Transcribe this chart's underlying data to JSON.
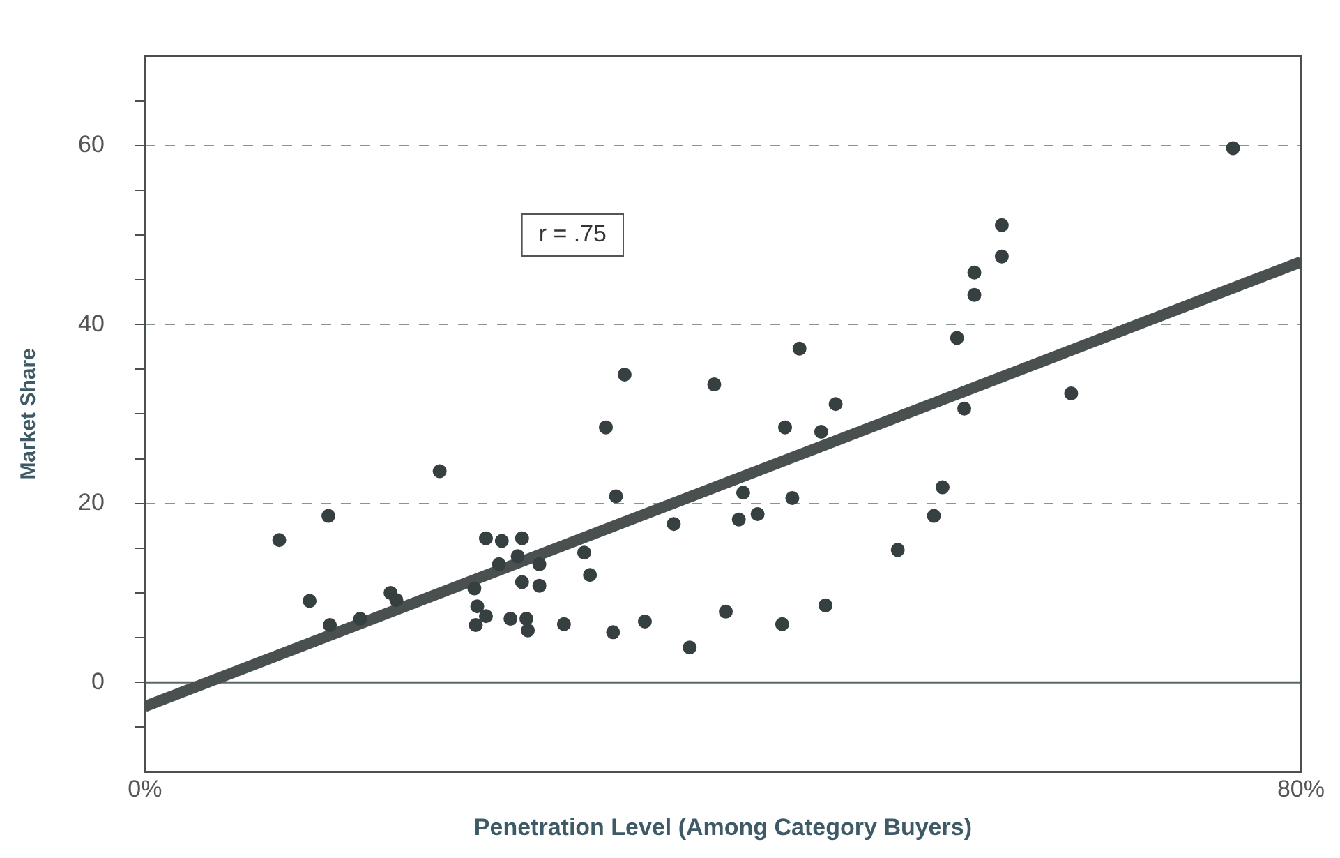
{
  "chart_data": {
    "type": "scatter",
    "xlabel": "Penetration Level (Among Category Buyers)",
    "ylabel": "Market Share",
    "xlim": [
      0,
      80
    ],
    "xticks": [
      {
        "value": 0,
        "label": "0%"
      },
      {
        "value": 80,
        "label": "80%"
      }
    ],
    "ylim": [
      -10,
      70
    ],
    "yticks": [
      {
        "value": -5,
        "label": null
      },
      {
        "value": 0,
        "label": "0"
      },
      {
        "value": 5,
        "label": null
      },
      {
        "value": 10,
        "label": null
      },
      {
        "value": 15,
        "label": null
      },
      {
        "value": 20,
        "label": "20"
      },
      {
        "value": 25,
        "label": null
      },
      {
        "value": 30,
        "label": null
      },
      {
        "value": 35,
        "label": null
      },
      {
        "value": 40,
        "label": "40"
      },
      {
        "value": 45,
        "label": null
      },
      {
        "value": 50,
        "label": null
      },
      {
        "value": 55,
        "label": null
      },
      {
        "value": 60,
        "label": "60"
      },
      {
        "value": 65,
        "label": null
      }
    ],
    "grid": "y",
    "annotations": [
      "r = .75"
    ],
    "ref_lines": [
      {
        "axis": "y",
        "value": 0,
        "color": "#5a6a6a"
      }
    ],
    "series": [
      {
        "color": "#364040",
        "marker": "circle",
        "x": [
          9.3,
          11.4,
          12.7,
          12.8,
          14.9,
          17.0,
          17.4,
          20.4,
          22.8,
          23.0,
          22.9,
          23.6,
          23.6,
          24.7,
          26.1,
          25.8,
          24.5,
          27.3,
          26.1,
          27.3,
          25.3,
          26.4,
          26.5,
          29.0,
          30.4,
          30.8,
          32.4,
          31.9,
          32.6,
          33.2,
          34.6,
          36.6,
          37.7,
          39.4,
          40.2,
          41.1,
          41.4,
          42.4,
          44.1,
          44.3,
          44.8,
          45.3,
          46.8,
          47.1,
          47.8,
          52.1,
          54.6,
          55.2,
          56.2,
          56.7,
          57.4,
          57.4,
          59.3,
          59.3,
          64.1,
          75.3
        ],
        "values": [
          15.9,
          9.1,
          18.6,
          6.4,
          7.1,
          10.0,
          9.2,
          23.6,
          10.5,
          8.5,
          6.4,
          7.4,
          16.1,
          15.8,
          16.1,
          14.1,
          13.2,
          13.2,
          11.2,
          10.8,
          7.1,
          7.1,
          5.8,
          6.5,
          14.5,
          12.0,
          5.6,
          28.5,
          20.8,
          34.4,
          6.8,
          17.7,
          3.9,
          33.3,
          7.9,
          18.2,
          21.2,
          18.8,
          6.5,
          28.5,
          20.6,
          37.3,
          28.0,
          8.6,
          31.1,
          14.8,
          18.6,
          21.8,
          38.5,
          30.6,
          43.3,
          45.8,
          47.6,
          51.1,
          32.3,
          59.7
        ]
      },
      {
        "type": "line",
        "color": "#4a5050",
        "x": [
          0,
          80
        ],
        "values": [
          -2.7,
          47
        ]
      }
    ]
  }
}
